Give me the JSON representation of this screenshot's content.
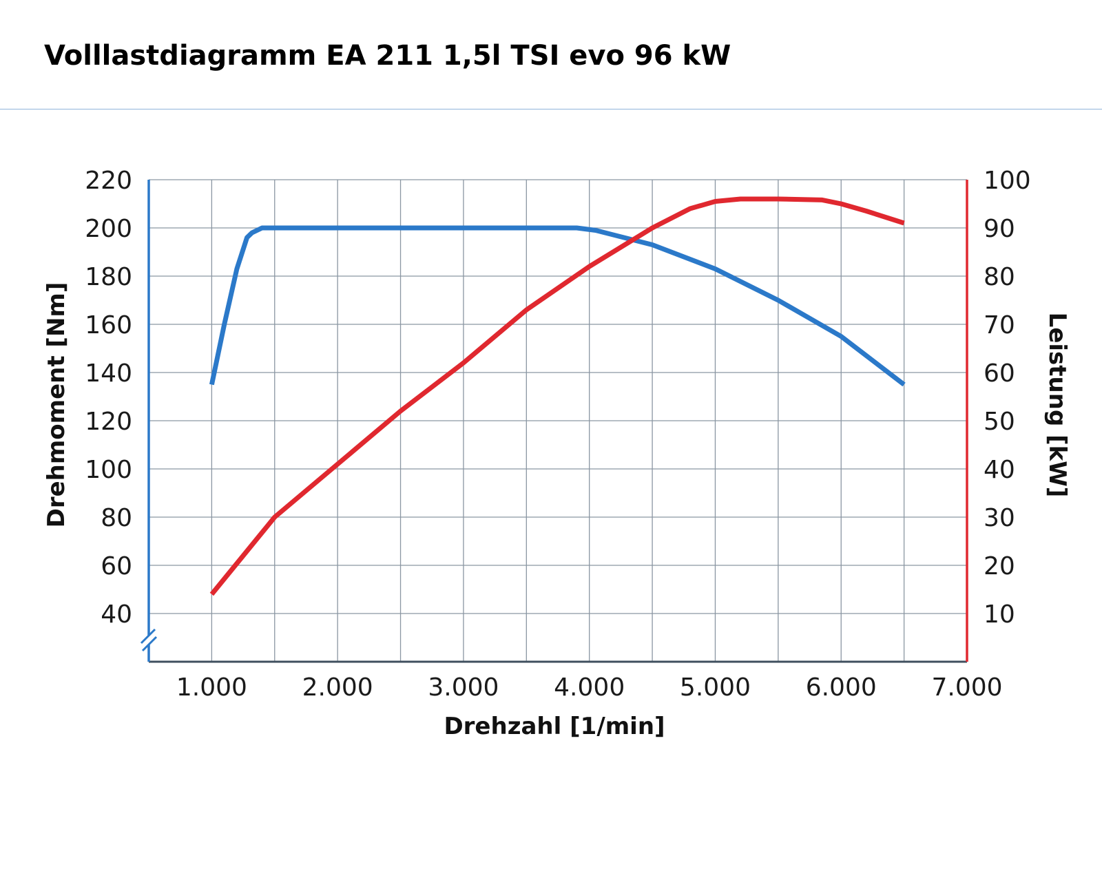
{
  "title": "Volllastdiagramm EA 211 1,5l TSI evo 96 kW",
  "chart_data": {
    "type": "line",
    "xlabel": "Drehzahl [1/min]",
    "ylabel_left": "Drehmoment [Nm]",
    "ylabel_right": "Leistung [kW]",
    "xlim": [
      500,
      7000
    ],
    "ylim_left": [
      20,
      220
    ],
    "ylim_right": [
      0,
      100
    ],
    "x_ticks": [
      1000,
      2000,
      3000,
      4000,
      5000,
      6000,
      7000
    ],
    "x_tick_labels": [
      "1.000",
      "2.000",
      "3.000",
      "4.000",
      "5.000",
      "6.000",
      "7.000"
    ],
    "y_left_ticks": [
      40,
      60,
      80,
      100,
      120,
      140,
      160,
      180,
      200,
      220
    ],
    "y_left_tick_labels": [
      "40",
      "60",
      "80",
      "100",
      "120",
      "140",
      "160",
      "180",
      "200",
      "220"
    ],
    "y_right_ticks": [
      10,
      20,
      30,
      40,
      50,
      60,
      70,
      80,
      90,
      100
    ],
    "y_right_tick_labels": [
      "10",
      "20",
      "30",
      "40",
      "50",
      "60",
      "70",
      "80",
      "90",
      "100"
    ],
    "x_grid": [
      1000,
      1500,
      2000,
      2500,
      3000,
      3500,
      4000,
      4500,
      5000,
      5500,
      6000,
      6500
    ],
    "grid": true,
    "left_axis_break": true,
    "series": [
      {
        "axis": "left",
        "color": "#2b79c9",
        "x": [
          1000,
          1100,
          1200,
          1280,
          1320,
          1400,
          1500,
          2000,
          3000,
          3900,
          4050,
          4500,
          5000,
          5500,
          6000,
          6500
        ],
        "values": [
          135,
          160,
          183,
          196,
          198,
          200,
          200,
          200,
          200,
          200,
          199,
          193,
          183,
          170,
          155,
          135
        ]
      },
      {
        "axis": "right",
        "color": "#e0282f",
        "x": [
          1000,
          1250,
          1500,
          2000,
          2500,
          3000,
          3500,
          4000,
          4500,
          4800,
          5000,
          5200,
          5500,
          5850,
          6000,
          6200,
          6500
        ],
        "values": [
          14,
          22,
          30,
          41,
          52,
          62,
          73,
          82,
          90,
          94,
          95.5,
          96,
          96,
          95.8,
          95,
          93.5,
          91
        ]
      }
    ]
  }
}
